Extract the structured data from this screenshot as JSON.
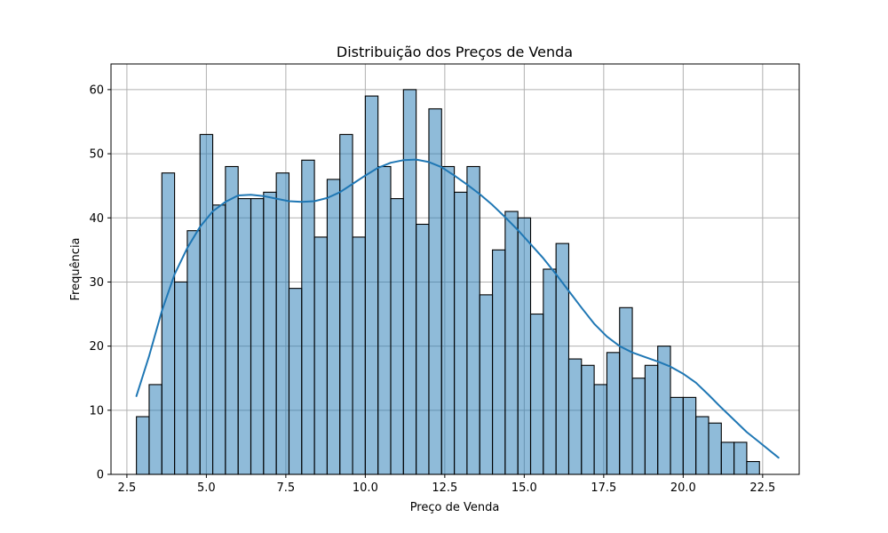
{
  "chart_data": {
    "type": "bar",
    "title": "Distribuição dos Preços de Venda",
    "xlabel": "Preço de Venda",
    "ylabel": "Frequência",
    "xlim": [
      2.0,
      23.65
    ],
    "ylim": [
      0,
      64
    ],
    "xticks": [
      2.5,
      5.0,
      7.5,
      10.0,
      12.5,
      15.0,
      17.5,
      20.0,
      22.5
    ],
    "xtick_labels": [
      "2.5",
      "5.0",
      "7.5",
      "10.0",
      "12.5",
      "15.0",
      "17.5",
      "20.0",
      "22.5"
    ],
    "yticks": [
      0,
      10,
      20,
      30,
      40,
      50,
      60
    ],
    "ytick_labels": [
      "0",
      "10",
      "20",
      "30",
      "40",
      "50",
      "60"
    ],
    "grid": true,
    "bin_start": 2.8,
    "bin_width": 0.4,
    "values": [
      9,
      14,
      47,
      30,
      38,
      53,
      42,
      48,
      43,
      43,
      44,
      47,
      29,
      49,
      37,
      46,
      53,
      37,
      59,
      48,
      43,
      60,
      39,
      57,
      48,
      44,
      48,
      28,
      35,
      41,
      40,
      25,
      32,
      36,
      18,
      17,
      14,
      19,
      26,
      15,
      17,
      20,
      12,
      12,
      9,
      8,
      5,
      5,
      2
    ],
    "kde": {
      "x": [
        2.8,
        3.2,
        3.6,
        4.0,
        4.4,
        4.8,
        5.2,
        5.6,
        6.0,
        6.4,
        6.8,
        7.2,
        7.6,
        8.0,
        8.4,
        8.8,
        9.2,
        9.6,
        10.0,
        10.4,
        10.8,
        11.2,
        11.6,
        12.0,
        12.4,
        12.8,
        13.2,
        13.6,
        14.0,
        14.4,
        14.8,
        15.2,
        15.6,
        16.0,
        16.4,
        16.8,
        17.2,
        17.6,
        18.0,
        18.4,
        18.8,
        19.2,
        19.6,
        20.0,
        20.4,
        20.8,
        21.2,
        21.6,
        22.0,
        22.4,
        23.0
      ],
      "y": [
        12.2,
        18.5,
        25.5,
        31.2,
        35.3,
        38.6,
        41.0,
        42.5,
        43.5,
        43.6,
        43.4,
        43.0,
        42.6,
        42.5,
        42.6,
        43.1,
        44.0,
        45.3,
        46.6,
        47.8,
        48.6,
        49.0,
        49.1,
        48.7,
        47.9,
        46.6,
        45.2,
        43.7,
        42.0,
        40.1,
        38.1,
        35.9,
        33.7,
        31.2,
        28.6,
        26.0,
        23.5,
        21.5,
        20.0,
        19.0,
        18.3,
        17.6,
        16.8,
        15.7,
        14.3,
        12.4,
        10.4,
        8.5,
        6.6,
        5.0,
        2.6
      ]
    }
  }
}
